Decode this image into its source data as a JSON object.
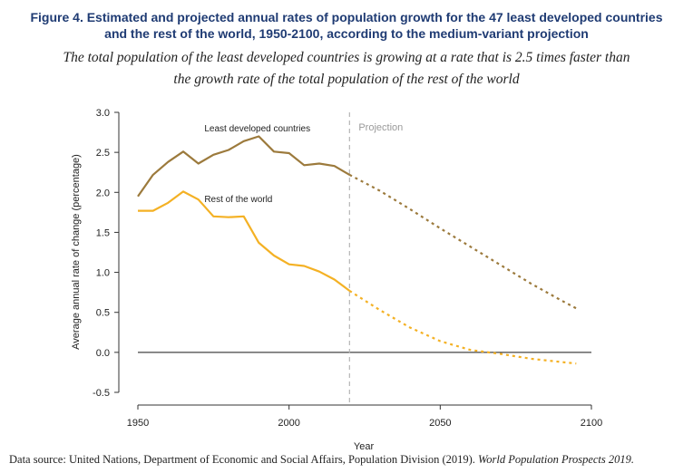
{
  "figure": {
    "title_line1": "Figure 4. Estimated and projected annual rates of population growth for the 47 least developed countries",
    "title_line2": "and the rest of the world, 1950-2100, according to the medium-variant projection",
    "subtitle_line1": "The total population of the least developed countries is growing at a rate that is 2.5 times faster than",
    "subtitle_line2": "the growth rate of the total population of the rest of the world",
    "source_prefix": "Data source: United Nations, Department of Economic and Social Affairs, Population Division (2019). ",
    "source_title": "World Population Prospects 2019."
  },
  "chart_data": {
    "type": "line",
    "xlabel": "Year",
    "ylabel": "Average annual rate of change (percentage)",
    "xlim": [
      1950,
      2100
    ],
    "ylim": [
      -0.5,
      3.0
    ],
    "x_ticks": [
      1950,
      2000,
      2050,
      2100
    ],
    "y_ticks": [
      -0.5,
      0.0,
      0.5,
      1.0,
      1.5,
      2.0,
      2.5,
      3.0
    ],
    "y_tick_labels": [
      "-0.5",
      "0.0",
      "0.5",
      "1.0",
      "1.5",
      "2.0",
      "2.5",
      "3.0"
    ],
    "projection_start": 2020,
    "projection_label": "Projection",
    "zero_line": 0,
    "series": [
      {
        "name": "Least developed countries",
        "color": "#9c7a3c",
        "estimated": {
          "x": [
            1950,
            1955,
            1960,
            1965,
            1970,
            1975,
            1980,
            1985,
            1990,
            1995,
            2000,
            2005,
            2010,
            2015,
            2020
          ],
          "y": [
            1.95,
            2.22,
            2.38,
            2.51,
            2.36,
            2.47,
            2.53,
            2.64,
            2.7,
            2.51,
            2.49,
            2.34,
            2.36,
            2.33,
            2.22
          ]
        },
        "projected": {
          "x": [
            2020,
            2030,
            2040,
            2050,
            2060,
            2070,
            2080,
            2090,
            2095
          ],
          "y": [
            2.22,
            2.02,
            1.79,
            1.55,
            1.32,
            1.09,
            0.86,
            0.65,
            0.55
          ]
        }
      },
      {
        "name": "Rest of the world",
        "color": "#f4b124",
        "estimated": {
          "x": [
            1950,
            1955,
            1960,
            1965,
            1970,
            1975,
            1980,
            1985,
            1990,
            1995,
            2000,
            2005,
            2010,
            2015,
            2020
          ],
          "y": [
            1.77,
            1.77,
            1.87,
            2.01,
            1.91,
            1.7,
            1.69,
            1.7,
            1.37,
            1.21,
            1.1,
            1.08,
            1.01,
            0.91,
            0.77
          ]
        },
        "projected": {
          "x": [
            2020,
            2030,
            2040,
            2050,
            2060,
            2070,
            2080,
            2090,
            2095
          ],
          "y": [
            0.77,
            0.53,
            0.31,
            0.14,
            0.03,
            -0.02,
            -0.08,
            -0.12,
            -0.14
          ]
        }
      }
    ]
  }
}
